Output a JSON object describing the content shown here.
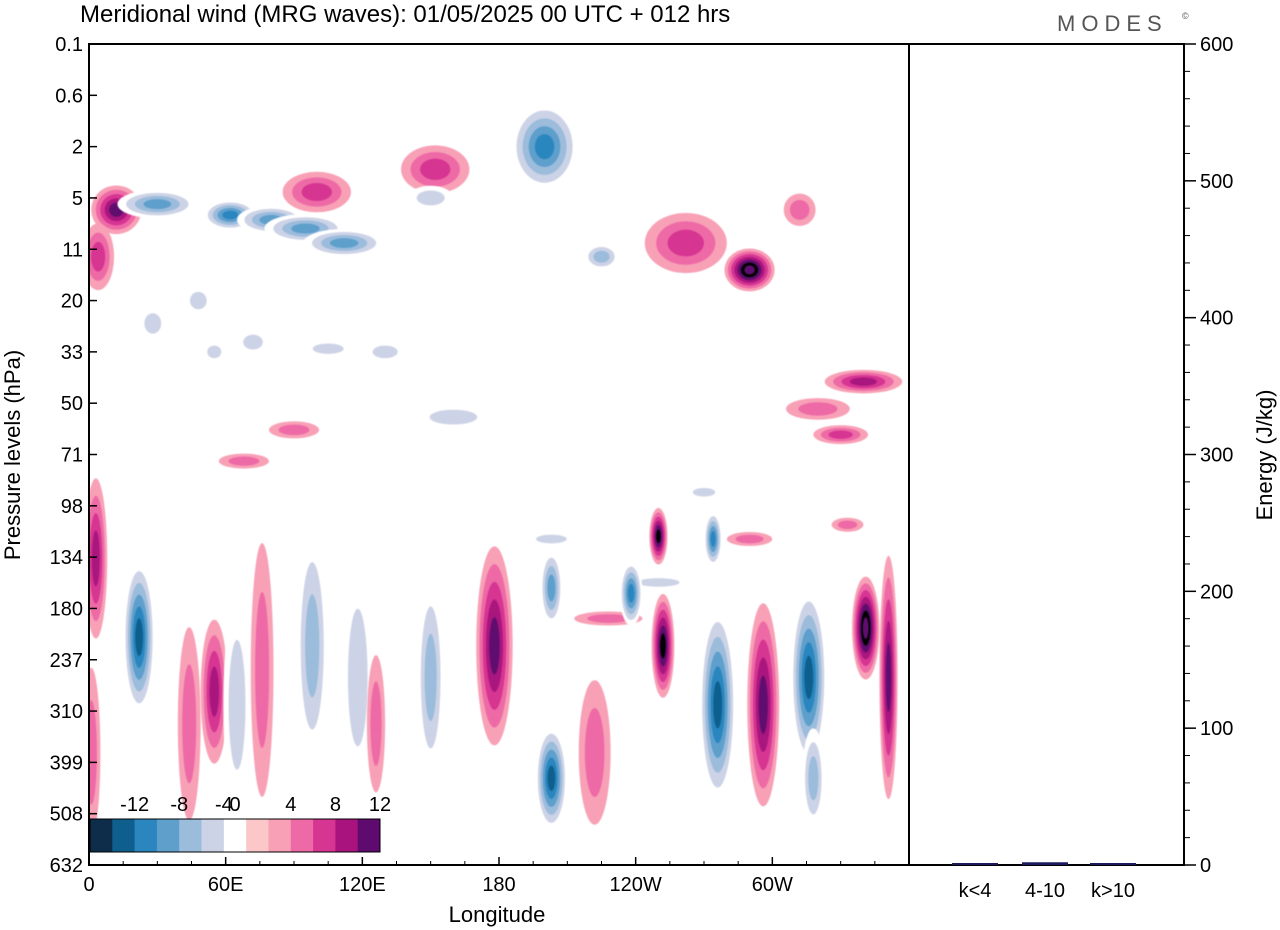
{
  "header": {
    "title": "Meridional wind (MRG waves):  01/05/2025  00 UTC  + 012 hrs",
    "brand": "MODES",
    "brand_mark": "©"
  },
  "chart_data": [
    {
      "type": "heatmap",
      "title": "Meridional wind (MRG waves):  01/05/2025  00 UTC  + 012 hrs",
      "xlabel": "Longitude",
      "ylabel": "Pressure levels (hPa)",
      "x_ticks": [
        "0",
        "60E",
        "120E",
        "180",
        "120W",
        "60W"
      ],
      "y_ticks": [
        "0.1",
        "0.6",
        "2",
        "5",
        "11",
        "20",
        "33",
        "50",
        "71",
        "98",
        "134",
        "180",
        "237",
        "310",
        "399",
        "508",
        "632"
      ],
      "colorbar": {
        "labels": [
          "-12",
          "-8",
          "-4",
          "0",
          "4",
          "8",
          "12"
        ],
        "levels": [
          -14,
          -12,
          -10,
          -8,
          -6,
          -4,
          -2,
          2,
          4,
          6,
          8,
          10,
          12,
          14
        ],
        "colors": [
          "#0d2d4a",
          "#0f5f8e",
          "#2b86bf",
          "#5e9fcc",
          "#9cbcdc",
          "#cdd3e6",
          "#ffffff",
          "#fbc7c9",
          "#f8a0b6",
          "#ee6aa6",
          "#d63592",
          "#a8137e",
          "#5e0a6e"
        ],
        "placement": "bottom-left"
      },
      "blobs": [
        {
          "lon": 12,
          "lev": 6,
          "w": 22,
          "h": 4.5,
          "v": 10
        },
        {
          "lon": 30,
          "lev": 5.5,
          "w": 35,
          "h": 2.5,
          "v": -8
        },
        {
          "lon": 62,
          "lev": 6.5,
          "w": 24,
          "h": 3,
          "v": -10
        },
        {
          "lon": 80,
          "lev": 7,
          "w": 30,
          "h": 3,
          "v": -8
        },
        {
          "lon": 95,
          "lev": 8,
          "w": 36,
          "h": 3.5,
          "v": -8
        },
        {
          "lon": 112,
          "lev": 10,
          "w": 36,
          "h": 4,
          "v": -8
        },
        {
          "lon": 100,
          "lev": 4.5,
          "w": 30,
          "h": 3,
          "v": 6
        },
        {
          "lon": 152,
          "lev": 3,
          "w": 30,
          "h": 2.5,
          "v": 6
        },
        {
          "lon": 150,
          "lev": 5,
          "w": 20,
          "h": 2,
          "v": -4
        },
        {
          "lon": 200,
          "lev": 2,
          "w": 30,
          "h": 3,
          "v": -10
        },
        {
          "lon": 225,
          "lev": 12,
          "w": 16,
          "h": 4,
          "v": -6
        },
        {
          "lon": 262,
          "lev": 10,
          "w": 36,
          "h": 8,
          "v": 6
        },
        {
          "lon": 290,
          "lev": 14,
          "w": 22,
          "h": 7,
          "v": 14
        },
        {
          "lon": 312,
          "lev": 6,
          "w": 14,
          "h": 3,
          "v": 4
        },
        {
          "lon": 4,
          "lev": 12,
          "w": 14,
          "h": 10,
          "v": 6
        },
        {
          "lon": 28,
          "lev": 25,
          "w": 12,
          "h": 8,
          "v": -4
        },
        {
          "lon": 48,
          "lev": 20,
          "w": 12,
          "h": 6,
          "v": -4
        },
        {
          "lon": 55,
          "lev": 33,
          "w": 10,
          "h": 6,
          "v": -4
        },
        {
          "lon": 72,
          "lev": 30,
          "w": 14,
          "h": 7,
          "v": -4
        },
        {
          "lon": 105,
          "lev": 32,
          "w": 22,
          "h": 5,
          "v": -4
        },
        {
          "lon": 130,
          "lev": 33,
          "w": 18,
          "h": 6,
          "v": -4
        },
        {
          "lon": 68,
          "lev": 74,
          "w": 22,
          "h": 7,
          "v": 4
        },
        {
          "lon": 90,
          "lev": 60,
          "w": 22,
          "h": 7,
          "v": 4
        },
        {
          "lon": 160,
          "lev": 55,
          "w": 34,
          "h": 9,
          "v": -4
        },
        {
          "lon": 203,
          "lev": 120,
          "w": 22,
          "h": 7,
          "v": -4
        },
        {
          "lon": 290,
          "lev": 120,
          "w": 20,
          "h": 7,
          "v": 4
        },
        {
          "lon": 250,
          "lev": 155,
          "w": 30,
          "h": 6,
          "v": -4
        },
        {
          "lon": 228,
          "lev": 190,
          "w": 30,
          "h": 6,
          "v": 4
        },
        {
          "lon": 270,
          "lev": 90,
          "w": 16,
          "h": 5,
          "v": -4
        },
        {
          "lon": 200,
          "lev": 450,
          "w": 12,
          "h": 5,
          "v": -4
        },
        {
          "lon": 340,
          "lev": 42,
          "w": 34,
          "h": 8,
          "v": 8
        },
        {
          "lon": 320,
          "lev": 52,
          "w": 28,
          "h": 8,
          "v": 4
        },
        {
          "lon": 330,
          "lev": 62,
          "w": 24,
          "h": 8,
          "v": 6
        },
        {
          "lon": 333,
          "lev": 110,
          "w": 14,
          "h": 7,
          "v": 4
        },
        {
          "lon": 3,
          "lev": 135,
          "w": 10,
          "h": 120,
          "v": 8
        },
        {
          "lon": 1,
          "lev": 380,
          "w": 8,
          "h": 300,
          "v": 4
        },
        {
          "lon": 22,
          "lev": 210,
          "w": 14,
          "h": 170,
          "v": -12
        },
        {
          "lon": 44,
          "lev": 330,
          "w": 10,
          "h": 300,
          "v": 4
        },
        {
          "lon": 55,
          "lev": 280,
          "w": 12,
          "h": 200,
          "v": 8
        },
        {
          "lon": 65,
          "lev": 300,
          "w": 12,
          "h": 300,
          "v": -4
        },
        {
          "lon": 76,
          "lev": 250,
          "w": 10,
          "h": 300,
          "v": 4
        },
        {
          "lon": 98,
          "lev": 220,
          "w": 14,
          "h": 250,
          "v": -6
        },
        {
          "lon": 118,
          "lev": 260,
          "w": 14,
          "h": 280,
          "v": -4
        },
        {
          "lon": 126,
          "lev": 330,
          "w": 8,
          "h": 220,
          "v": 4
        },
        {
          "lon": 150,
          "lev": 260,
          "w": 12,
          "h": 250,
          "v": -6
        },
        {
          "lon": 178,
          "lev": 220,
          "w": 16,
          "h": 220,
          "v": 10
        },
        {
          "lon": 203,
          "lev": 160,
          "w": 10,
          "h": 70,
          "v": -8
        },
        {
          "lon": 203,
          "lev": 430,
          "w": 14,
          "h": 210,
          "v": -12
        },
        {
          "lon": 222,
          "lev": 380,
          "w": 14,
          "h": 260,
          "v": 4
        },
        {
          "lon": 238,
          "lev": 165,
          "w": 10,
          "h": 60,
          "v": -10
        },
        {
          "lon": 250,
          "lev": 118,
          "w": 8,
          "h": 40,
          "v": 12
        },
        {
          "lon": 252,
          "lev": 220,
          "w": 10,
          "h": 120,
          "v": 12
        },
        {
          "lon": 274,
          "lev": 120,
          "w": 8,
          "h": 40,
          "v": -10
        },
        {
          "lon": 276,
          "lev": 300,
          "w": 16,
          "h": 280,
          "v": -12
        },
        {
          "lon": 296,
          "lev": 300,
          "w": 14,
          "h": 290,
          "v": 10
        },
        {
          "lon": 316,
          "lev": 260,
          "w": 16,
          "h": 230,
          "v": -12
        },
        {
          "lon": 318,
          "lev": 430,
          "w": 10,
          "h": 200,
          "v": -6
        },
        {
          "lon": 341,
          "lev": 200,
          "w": 12,
          "h": 110,
          "v": 14
        },
        {
          "lon": 351,
          "lev": 260,
          "w": 8,
          "h": 300,
          "v": 10
        }
      ]
    },
    {
      "type": "bar",
      "categories": [
        "k<4",
        "4-10",
        "k>10"
      ],
      "values": [
        0,
        2,
        0
      ],
      "ylabel": "Energy (J/kg)",
      "ylim": [
        0,
        600
      ],
      "y_ticks": [
        "0",
        "100",
        "200",
        "300",
        "400",
        "500",
        "600"
      ],
      "color": "#1a1a5e"
    }
  ]
}
